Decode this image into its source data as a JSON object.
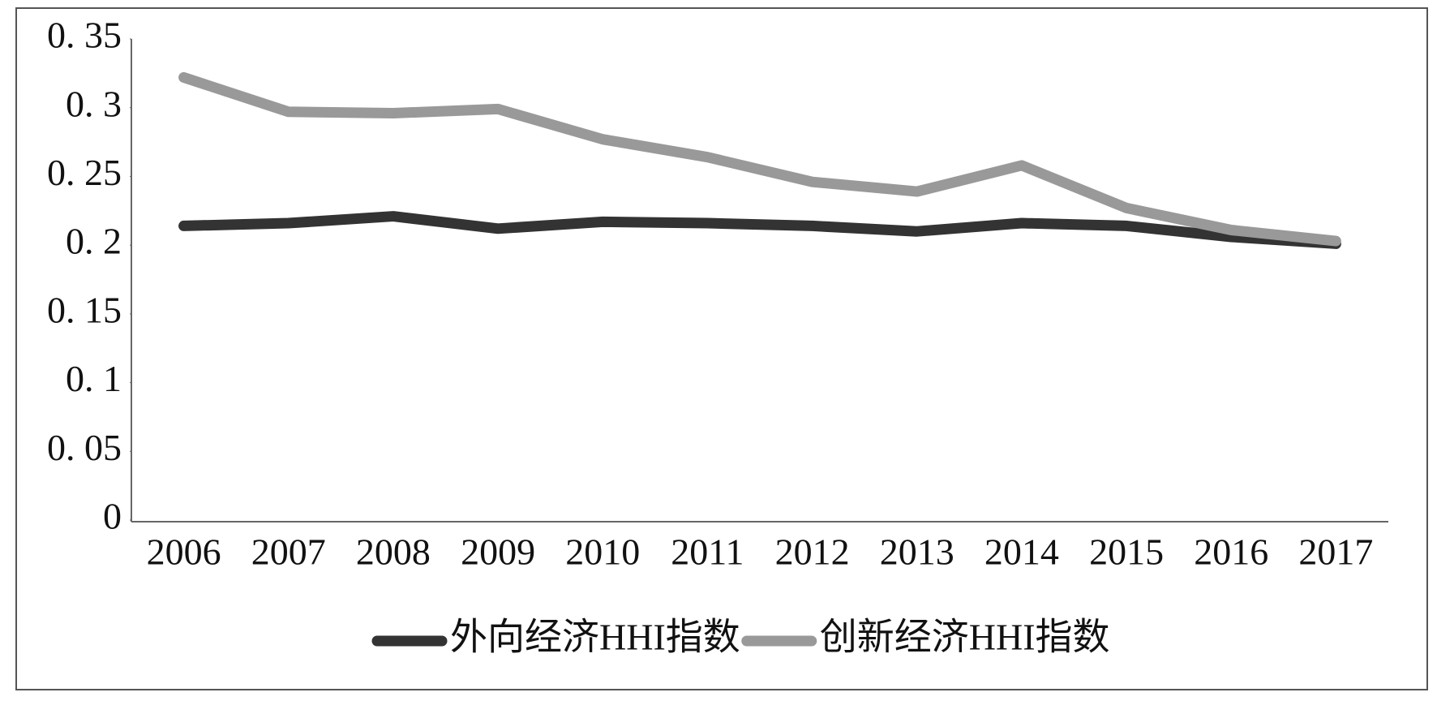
{
  "chart_data": {
    "type": "line",
    "categories": [
      "2006",
      "2007",
      "2008",
      "2009",
      "2010",
      "2011",
      "2012",
      "2013",
      "2014",
      "2015",
      "2016",
      "2017"
    ],
    "series": [
      {
        "name": "外向经济HHI指数",
        "color": "#333333",
        "values": [
          0.214,
          0.216,
          0.221,
          0.212,
          0.217,
          0.216,
          0.214,
          0.21,
          0.216,
          0.214,
          0.206,
          0.201
        ]
      },
      {
        "name": "创新经济HHI指数",
        "color": "#999999",
        "values": [
          0.322,
          0.297,
          0.296,
          0.299,
          0.277,
          0.264,
          0.246,
          0.239,
          0.258,
          0.227,
          0.211,
          0.203
        ]
      }
    ],
    "ylim": [
      0,
      0.35
    ],
    "yticks": [
      0,
      {
        "value": 0.05,
        "label": "0. 05"
      },
      {
        "value": 0.1,
        "label": "0. 1"
      },
      {
        "value": 0.15,
        "label": "0. 15"
      },
      {
        "value": 0.2,
        "label": "0. 2"
      },
      {
        "value": 0.25,
        "label": "0. 25"
      },
      {
        "value": 0.3,
        "label": "0. 3"
      },
      {
        "value": 0.35,
        "label": "0. 35"
      }
    ],
    "grid": false,
    "legend": "bottom"
  }
}
